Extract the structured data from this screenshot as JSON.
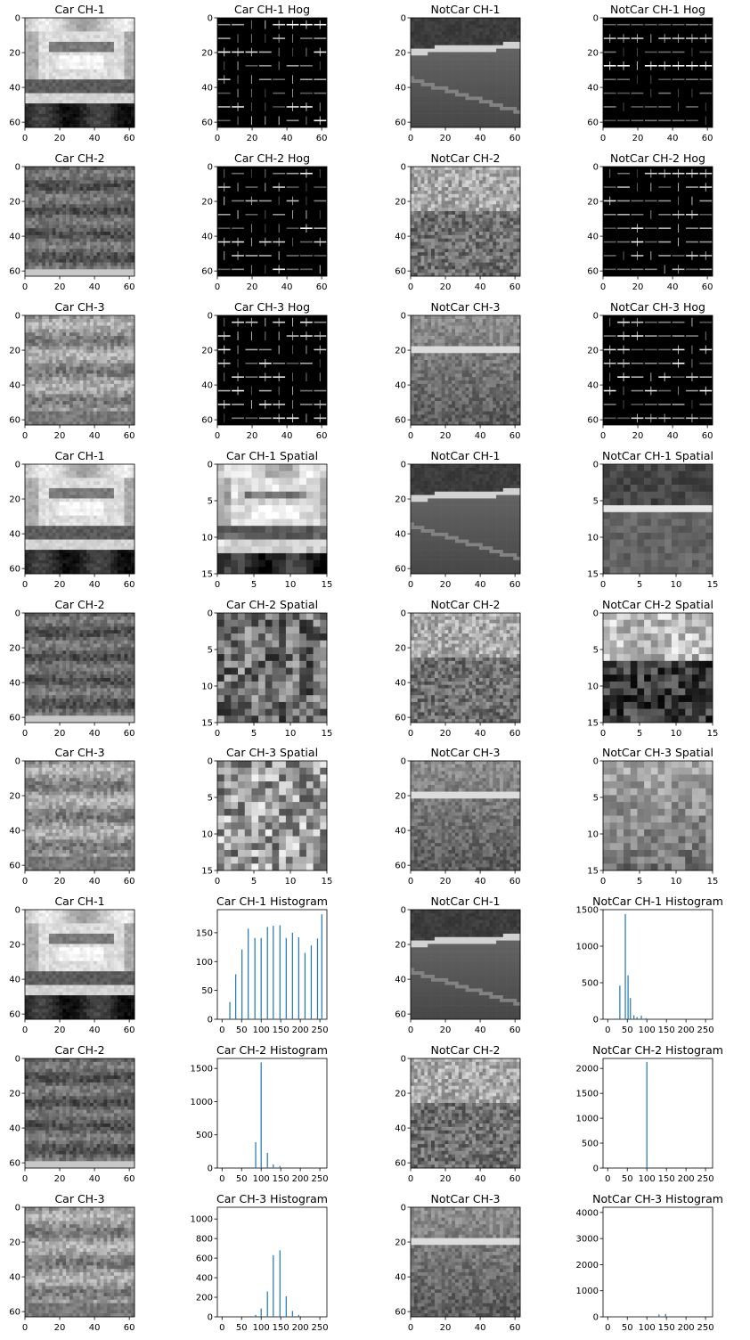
{
  "figure": {
    "grid": false,
    "colormap": "gray",
    "bar_color": "#1f77b4"
  },
  "chart_data": [
    {
      "type": "image",
      "title": "Car CH-1",
      "image": "car-ch1",
      "xticks": [
        "0",
        "20",
        "40",
        "60"
      ],
      "yticks": [
        "0",
        "20",
        "40",
        "60"
      ],
      "xlim": [
        0,
        63
      ],
      "ylim": [
        63,
        0
      ]
    },
    {
      "type": "image",
      "title": "Car CH-1 Hog",
      "image": "car-ch1-hog",
      "xticks": [
        "0",
        "20",
        "40",
        "60"
      ],
      "yticks": [
        "0",
        "20",
        "40",
        "60"
      ],
      "xlim": [
        0,
        63
      ],
      "ylim": [
        63,
        0
      ]
    },
    {
      "type": "image",
      "title": "NotCar CH-1",
      "image": "notcar-ch1",
      "xticks": [
        "0",
        "20",
        "40",
        "60"
      ],
      "yticks": [
        "0",
        "20",
        "40",
        "60"
      ],
      "xlim": [
        0,
        63
      ],
      "ylim": [
        63,
        0
      ]
    },
    {
      "type": "image",
      "title": "NotCar CH-1 Hog",
      "image": "notcar-ch1-hog",
      "xticks": [
        "0",
        "20",
        "40",
        "60"
      ],
      "yticks": [
        "0",
        "20",
        "40",
        "60"
      ],
      "xlim": [
        0,
        63
      ],
      "ylim": [
        63,
        0
      ]
    },
    {
      "type": "image",
      "title": "Car CH-2",
      "image": "car-ch2",
      "xticks": [
        "0",
        "20",
        "40",
        "60"
      ],
      "yticks": [
        "0",
        "20",
        "40",
        "60"
      ],
      "xlim": [
        0,
        63
      ],
      "ylim": [
        63,
        0
      ]
    },
    {
      "type": "image",
      "title": "Car CH-2 Hog",
      "image": "car-ch2-hog",
      "xticks": [
        "0",
        "20",
        "40",
        "60"
      ],
      "yticks": [
        "0",
        "20",
        "40",
        "60"
      ],
      "xlim": [
        0,
        63
      ],
      "ylim": [
        63,
        0
      ]
    },
    {
      "type": "image",
      "title": "NotCar CH-2",
      "image": "notcar-ch2",
      "xticks": [
        "0",
        "20",
        "40",
        "60"
      ],
      "yticks": [
        "0",
        "20",
        "40",
        "60"
      ],
      "xlim": [
        0,
        63
      ],
      "ylim": [
        63,
        0
      ]
    },
    {
      "type": "image",
      "title": "NotCar CH-2 Hog",
      "image": "notcar-ch2-hog",
      "xticks": [
        "0",
        "20",
        "40",
        "60"
      ],
      "yticks": [
        "0",
        "20",
        "40",
        "60"
      ],
      "xlim": [
        0,
        63
      ],
      "ylim": [
        63,
        0
      ]
    },
    {
      "type": "image",
      "title": "Car CH-3",
      "image": "car-ch3",
      "xticks": [
        "0",
        "20",
        "40",
        "60"
      ],
      "yticks": [
        "0",
        "20",
        "40",
        "60"
      ],
      "xlim": [
        0,
        63
      ],
      "ylim": [
        63,
        0
      ]
    },
    {
      "type": "image",
      "title": "Car CH-3 Hog",
      "image": "car-ch3-hog",
      "xticks": [
        "0",
        "20",
        "40",
        "60"
      ],
      "yticks": [
        "0",
        "20",
        "40",
        "60"
      ],
      "xlim": [
        0,
        63
      ],
      "ylim": [
        63,
        0
      ]
    },
    {
      "type": "image",
      "title": "NotCar CH-3",
      "image": "notcar-ch3",
      "xticks": [
        "0",
        "20",
        "40",
        "60"
      ],
      "yticks": [
        "0",
        "20",
        "40",
        "60"
      ],
      "xlim": [
        0,
        63
      ],
      "ylim": [
        63,
        0
      ]
    },
    {
      "type": "image",
      "title": "NotCar CH-3 Hog",
      "image": "notcar-ch3-hog",
      "xticks": [
        "0",
        "20",
        "40",
        "60"
      ],
      "yticks": [
        "0",
        "20",
        "40",
        "60"
      ],
      "xlim": [
        0,
        63
      ],
      "ylim": [
        63,
        0
      ]
    },
    {
      "type": "image",
      "title": "Car CH-1",
      "image": "car-ch1",
      "xticks": [
        "0",
        "20",
        "40",
        "60"
      ],
      "yticks": [
        "0",
        "20",
        "40",
        "60"
      ],
      "xlim": [
        0,
        63
      ],
      "ylim": [
        63,
        0
      ]
    },
    {
      "type": "image",
      "title": "Car CH-1 Spatial",
      "image": "car-ch1-spatial",
      "xticks": [
        "0",
        "5",
        "10",
        "15"
      ],
      "yticks": [
        "0",
        "5",
        "10",
        "15"
      ],
      "xlim": [
        0,
        15
      ],
      "ylim": [
        15,
        0
      ]
    },
    {
      "type": "image",
      "title": "NotCar CH-1",
      "image": "notcar-ch1",
      "xticks": [
        "0",
        "20",
        "40",
        "60"
      ],
      "yticks": [
        "0",
        "20",
        "40",
        "60"
      ],
      "xlim": [
        0,
        63
      ],
      "ylim": [
        63,
        0
      ]
    },
    {
      "type": "image",
      "title": "NotCar CH-1 Spatial",
      "image": "notcar-ch1-spatial",
      "xticks": [
        "0",
        "5",
        "10",
        "15"
      ],
      "yticks": [
        "0",
        "5",
        "10",
        "15"
      ],
      "xlim": [
        0,
        15
      ],
      "ylim": [
        15,
        0
      ]
    },
    {
      "type": "image",
      "title": "Car CH-2",
      "image": "car-ch2",
      "xticks": [
        "0",
        "20",
        "40",
        "60"
      ],
      "yticks": [
        "0",
        "20",
        "40",
        "60"
      ],
      "xlim": [
        0,
        63
      ],
      "ylim": [
        63,
        0
      ]
    },
    {
      "type": "image",
      "title": "Car CH-2 Spatial",
      "image": "car-ch2-spatial",
      "xticks": [
        "0",
        "5",
        "10",
        "15"
      ],
      "yticks": [
        "0",
        "5",
        "10",
        "15"
      ],
      "xlim": [
        0,
        15
      ],
      "ylim": [
        15,
        0
      ]
    },
    {
      "type": "image",
      "title": "NotCar CH-2",
      "image": "notcar-ch2",
      "xticks": [
        "0",
        "20",
        "40",
        "60"
      ],
      "yticks": [
        "0",
        "20",
        "40",
        "60"
      ],
      "xlim": [
        0,
        63
      ],
      "ylim": [
        63,
        0
      ]
    },
    {
      "type": "image",
      "title": "NotCar CH-2 Spatial",
      "image": "notcar-ch2-spatial",
      "xticks": [
        "0",
        "5",
        "10",
        "15"
      ],
      "yticks": [
        "0",
        "5",
        "10",
        "15"
      ],
      "xlim": [
        0,
        15
      ],
      "ylim": [
        15,
        0
      ]
    },
    {
      "type": "image",
      "title": "Car CH-3",
      "image": "car-ch3",
      "xticks": [
        "0",
        "20",
        "40",
        "60"
      ],
      "yticks": [
        "0",
        "20",
        "40",
        "60"
      ],
      "xlim": [
        0,
        63
      ],
      "ylim": [
        63,
        0
      ]
    },
    {
      "type": "image",
      "title": "Car CH-3 Spatial",
      "image": "car-ch3-spatial",
      "xticks": [
        "0",
        "5",
        "10",
        "15"
      ],
      "yticks": [
        "0",
        "5",
        "10",
        "15"
      ],
      "xlim": [
        0,
        15
      ],
      "ylim": [
        15,
        0
      ]
    },
    {
      "type": "image",
      "title": "NotCar CH-3",
      "image": "notcar-ch3",
      "xticks": [
        "0",
        "20",
        "40",
        "60"
      ],
      "yticks": [
        "0",
        "20",
        "40",
        "60"
      ],
      "xlim": [
        0,
        63
      ],
      "ylim": [
        63,
        0
      ]
    },
    {
      "type": "image",
      "title": "NotCar CH-3 Spatial",
      "image": "notcar-ch3-spatial",
      "xticks": [
        "0",
        "5",
        "10",
        "15"
      ],
      "yticks": [
        "0",
        "5",
        "10",
        "15"
      ],
      "xlim": [
        0,
        15
      ],
      "ylim": [
        15,
        0
      ]
    },
    {
      "type": "image",
      "title": "Car CH-1",
      "image": "car-ch1",
      "xticks": [
        "0",
        "20",
        "40",
        "60"
      ],
      "yticks": [
        "0",
        "20",
        "40",
        "60"
      ],
      "xlim": [
        0,
        63
      ],
      "ylim": [
        63,
        0
      ]
    },
    {
      "type": "bar",
      "title": "Car CH-1 Histogram",
      "x": [
        20,
        35,
        51,
        67,
        84,
        100,
        116,
        131,
        148,
        164,
        180,
        196,
        212,
        228,
        244
      ],
      "values": [
        30,
        78,
        121,
        157,
        141,
        141,
        160,
        162,
        163,
        141,
        150,
        142,
        115,
        128,
        140
      ],
      "x_last": 255,
      "v_last": 182,
      "xlim": [
        -12,
        268
      ],
      "ylim": [
        0,
        190
      ],
      "xticks": [
        0,
        50,
        100,
        150,
        200,
        250
      ],
      "yticks": [
        0,
        50,
        100,
        150
      ]
    },
    {
      "type": "image",
      "title": "NotCar CH-1",
      "image": "notcar-ch1",
      "xticks": [
        "0",
        "20",
        "40",
        "60"
      ],
      "yticks": [
        "0",
        "20",
        "40",
        "60"
      ],
      "xlim": [
        0,
        63
      ],
      "ylim": [
        63,
        0
      ]
    },
    {
      "type": "bar",
      "title": "NotCar CH-1 Histogram",
      "x": [
        31,
        45,
        52,
        58,
        67,
        75,
        86,
        98
      ],
      "values": [
        460,
        1440,
        600,
        290,
        55,
        30,
        50,
        15
      ],
      "xlim": [
        -12,
        268
      ],
      "ylim": [
        0,
        1500
      ],
      "xticks": [
        0,
        50,
        100,
        150,
        200,
        250
      ],
      "yticks": [
        0,
        500,
        1000,
        1500
      ]
    },
    {
      "type": "image",
      "title": "Car CH-2",
      "image": "car-ch2",
      "xticks": [
        "0",
        "20",
        "40",
        "60"
      ],
      "yticks": [
        "0",
        "20",
        "40",
        "60"
      ],
      "xlim": [
        0,
        63
      ],
      "ylim": [
        63,
        0
      ]
    },
    {
      "type": "bar",
      "title": "Car CH-2 Histogram",
      "x": [
        86,
        100,
        116,
        131,
        148
      ],
      "values": [
        390,
        1590,
        230,
        55,
        30
      ],
      "xlim": [
        -12,
        268
      ],
      "ylim": [
        0,
        1650
      ],
      "xticks": [
        0,
        50,
        100,
        150,
        200,
        250
      ],
      "yticks": [
        0,
        500,
        1000,
        1500
      ]
    },
    {
      "type": "image",
      "title": "NotCar CH-2",
      "image": "notcar-ch2",
      "xticks": [
        "0",
        "20",
        "40",
        "60"
      ],
      "yticks": [
        "0",
        "20",
        "40",
        "60"
      ],
      "xlim": [
        0,
        63
      ],
      "ylim": [
        63,
        0
      ]
    },
    {
      "type": "bar",
      "title": "NotCar CH-2 Histogram",
      "x": [
        100
      ],
      "values": [
        2130
      ],
      "xlim": [
        -12,
        268
      ],
      "ylim": [
        0,
        2200
      ],
      "xticks": [
        0,
        50,
        100,
        150,
        200,
        250
      ],
      "yticks": [
        0,
        500,
        1000,
        1500,
        2000
      ]
    },
    {
      "type": "image",
      "title": "Car CH-3",
      "image": "car-ch3",
      "xticks": [
        "0",
        "20",
        "40",
        "60"
      ],
      "yticks": [
        "0",
        "20",
        "40",
        "60"
      ],
      "xlim": [
        0,
        63
      ],
      "ylim": [
        63,
        0
      ]
    },
    {
      "type": "bar",
      "title": "Car CH-3 Histogram",
      "x": [
        86,
        100,
        116,
        131,
        148,
        164,
        180,
        196
      ],
      "values": [
        20,
        85,
        260,
        630,
        680,
        210,
        60,
        20
      ],
      "xlim": [
        -12,
        268
      ],
      "ylim": [
        0,
        1120
      ],
      "xticks": [
        0,
        50,
        100,
        150,
        200,
        250
      ],
      "yticks": [
        0,
        200,
        400,
        600,
        800,
        1000
      ]
    },
    {
      "type": "image",
      "title": "NotCar CH-3",
      "image": "notcar-ch3",
      "xticks": [
        "0",
        "20",
        "40",
        "60"
      ],
      "yticks": [
        "0",
        "20",
        "40",
        "60"
      ],
      "xlim": [
        0,
        63
      ],
      "ylim": [
        63,
        0
      ]
    },
    {
      "type": "bar",
      "title": "NotCar CH-3 Histogram",
      "x": [
        131,
        148
      ],
      "values": [
        90,
        110
      ],
      "xlim": [
        -12,
        268
      ],
      "ylim": [
        0,
        4200
      ],
      "xticks": [
        0,
        50,
        100,
        150,
        200,
        250
      ],
      "yticks": [
        0,
        1000,
        2000,
        3000,
        4000
      ]
    }
  ]
}
